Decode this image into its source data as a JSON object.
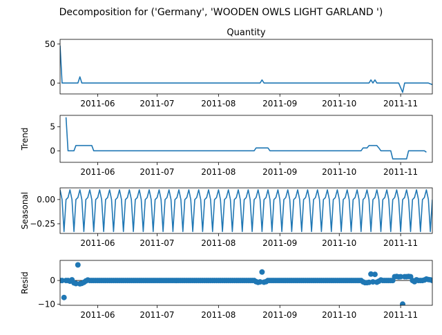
{
  "figure": {
    "suptitle": "Decomposition for ('Germany', 'WOODEN OWLS LIGHT GARLAND ')"
  },
  "colors": {
    "line": "#1f77b4",
    "axes": "#000000",
    "background": "#ffffff"
  },
  "x_ticks": [
    "2011-06",
    "2011-07",
    "2011-08",
    "2011-09",
    "2011-10",
    "2011-11"
  ],
  "chart_data": [
    {
      "type": "line",
      "title": "Quantity",
      "ylabel": "",
      "xlim": [
        "2011-05-13",
        "2011-11-17"
      ],
      "ylim": [
        -14,
        56
      ],
      "yticks": [
        {
          "value": 50,
          "label": "50"
        },
        {
          "value": 0,
          "label": "0"
        }
      ],
      "points": [
        [
          "2011-05-13",
          48
        ],
        [
          "2011-05-14",
          0
        ],
        [
          "2011-05-22",
          0
        ],
        [
          "2011-05-23",
          8
        ],
        [
          "2011-05-24",
          0
        ],
        [
          "2011-08-22",
          0
        ],
        [
          "2011-08-23",
          4
        ],
        [
          "2011-08-24",
          0
        ],
        [
          "2011-10-16",
          0
        ],
        [
          "2011-10-17",
          4
        ],
        [
          "2011-10-18",
          0
        ],
        [
          "2011-10-19",
          4
        ],
        [
          "2011-10-20",
          0
        ],
        [
          "2011-10-31",
          0
        ],
        [
          "2011-11-02",
          -12
        ],
        [
          "2011-11-03",
          0
        ],
        [
          "2011-11-15",
          0
        ],
        [
          "2011-11-17",
          -2
        ]
      ]
    },
    {
      "type": "line",
      "title": "",
      "ylabel": "Trend",
      "xlim": [
        "2011-05-13",
        "2011-11-17"
      ],
      "ylim": [
        -2.4,
        7.4
      ],
      "yticks": [
        {
          "value": 5,
          "label": "5"
        },
        {
          "value": 0,
          "label": "0"
        }
      ],
      "points": [
        [
          "2011-05-16",
          7
        ],
        [
          "2011-05-17",
          0
        ],
        [
          "2011-05-20",
          0
        ],
        [
          "2011-05-21",
          1.1
        ],
        [
          "2011-05-29",
          1.1
        ],
        [
          "2011-05-30",
          0
        ],
        [
          "2011-08-19",
          0
        ],
        [
          "2011-08-20",
          0.6
        ],
        [
          "2011-08-26",
          0.6
        ],
        [
          "2011-08-27",
          0
        ],
        [
          "2011-10-12",
          0
        ],
        [
          "2011-10-13",
          0.6
        ],
        [
          "2011-10-15",
          0.6
        ],
        [
          "2011-10-16",
          1.1
        ],
        [
          "2011-10-20",
          1.1
        ],
        [
          "2011-10-21",
          0.6
        ],
        [
          "2011-10-22",
          0
        ],
        [
          "2011-10-27",
          0
        ],
        [
          "2011-10-28",
          -1.7
        ],
        [
          "2011-11-04",
          -1.7
        ],
        [
          "2011-11-05",
          0
        ],
        [
          "2011-11-13",
          0
        ],
        [
          "2011-11-14",
          -0.3
        ]
      ]
    },
    {
      "type": "line",
      "title": "",
      "ylabel": "Seasonal",
      "xlim": [
        "2011-05-13",
        "2011-11-17"
      ],
      "ylim": [
        -0.35,
        0.12
      ],
      "yticks": [
        {
          "value": 0,
          "label": "0.00"
        },
        {
          "value": -0.25,
          "label": "−0.25"
        }
      ],
      "period_days": 5,
      "pattern": [
        0.1,
        0.0,
        -0.33,
        0.0,
        0.02
      ],
      "start": "2011-05-13",
      "end": "2011-11-17"
    },
    {
      "type": "scatter",
      "title": "",
      "ylabel": "Resid",
      "xlim": [
        "2011-05-13",
        "2011-11-17"
      ],
      "ylim": [
        -10.5,
        8.5
      ],
      "yticks": [
        {
          "value": 0,
          "label": "0"
        },
        {
          "value": -10,
          "label": "−10"
        }
      ],
      "baseline": 0,
      "points": [
        [
          "2011-05-15",
          -7.2
        ],
        [
          "2011-05-16",
          0
        ],
        [
          "2011-05-17",
          0
        ],
        [
          "2011-05-18",
          -0.3
        ],
        [
          "2011-05-19",
          0.3
        ],
        [
          "2011-05-20",
          -1
        ],
        [
          "2011-05-21",
          -1.3
        ],
        [
          "2011-05-22",
          6.6
        ],
        [
          "2011-05-23",
          -1.4
        ],
        [
          "2011-05-24",
          -1.2
        ],
        [
          "2011-05-25",
          -0.8
        ],
        [
          "2011-05-26",
          -0.2
        ],
        [
          "2011-05-27",
          0.2
        ],
        [
          "2011-05-28",
          0
        ],
        [
          "2011-08-20",
          -0.5
        ],
        [
          "2011-08-21",
          -0.8
        ],
        [
          "2011-08-22",
          -0.6
        ],
        [
          "2011-08-23",
          3.6
        ],
        [
          "2011-08-24",
          -0.7
        ],
        [
          "2011-08-25",
          -0.5
        ],
        [
          "2011-10-13",
          -0.6
        ],
        [
          "2011-10-14",
          -0.9
        ],
        [
          "2011-10-15",
          -0.9
        ],
        [
          "2011-10-16",
          -0.8
        ],
        [
          "2011-10-17",
          2.7
        ],
        [
          "2011-10-18",
          -0.6
        ],
        [
          "2011-10-19",
          2.6
        ],
        [
          "2011-10-20",
          -0.7
        ],
        [
          "2011-10-21",
          -0.3
        ],
        [
          "2011-10-22",
          0.2
        ],
        [
          "2011-10-29",
          1.6
        ],
        [
          "2011-10-30",
          1.7
        ],
        [
          "2011-10-31",
          1.5
        ],
        [
          "2011-11-01",
          1.6
        ],
        [
          "2011-11-02",
          -10
        ],
        [
          "2011-11-03",
          1.6
        ],
        [
          "2011-11-04",
          1.6
        ],
        [
          "2011-11-05",
          1.7
        ],
        [
          "2011-11-06",
          1.6
        ],
        [
          "2011-11-07",
          0
        ],
        [
          "2011-11-08",
          -0.5
        ],
        [
          "2011-11-09",
          0.3
        ],
        [
          "2011-11-13",
          0.2
        ],
        [
          "2011-11-14",
          0.6
        ],
        [
          "2011-11-15",
          0.4
        ],
        [
          "2011-11-16",
          0.3
        ]
      ],
      "fill_range": [
        "2011-05-13",
        "2011-11-17"
      ]
    }
  ]
}
